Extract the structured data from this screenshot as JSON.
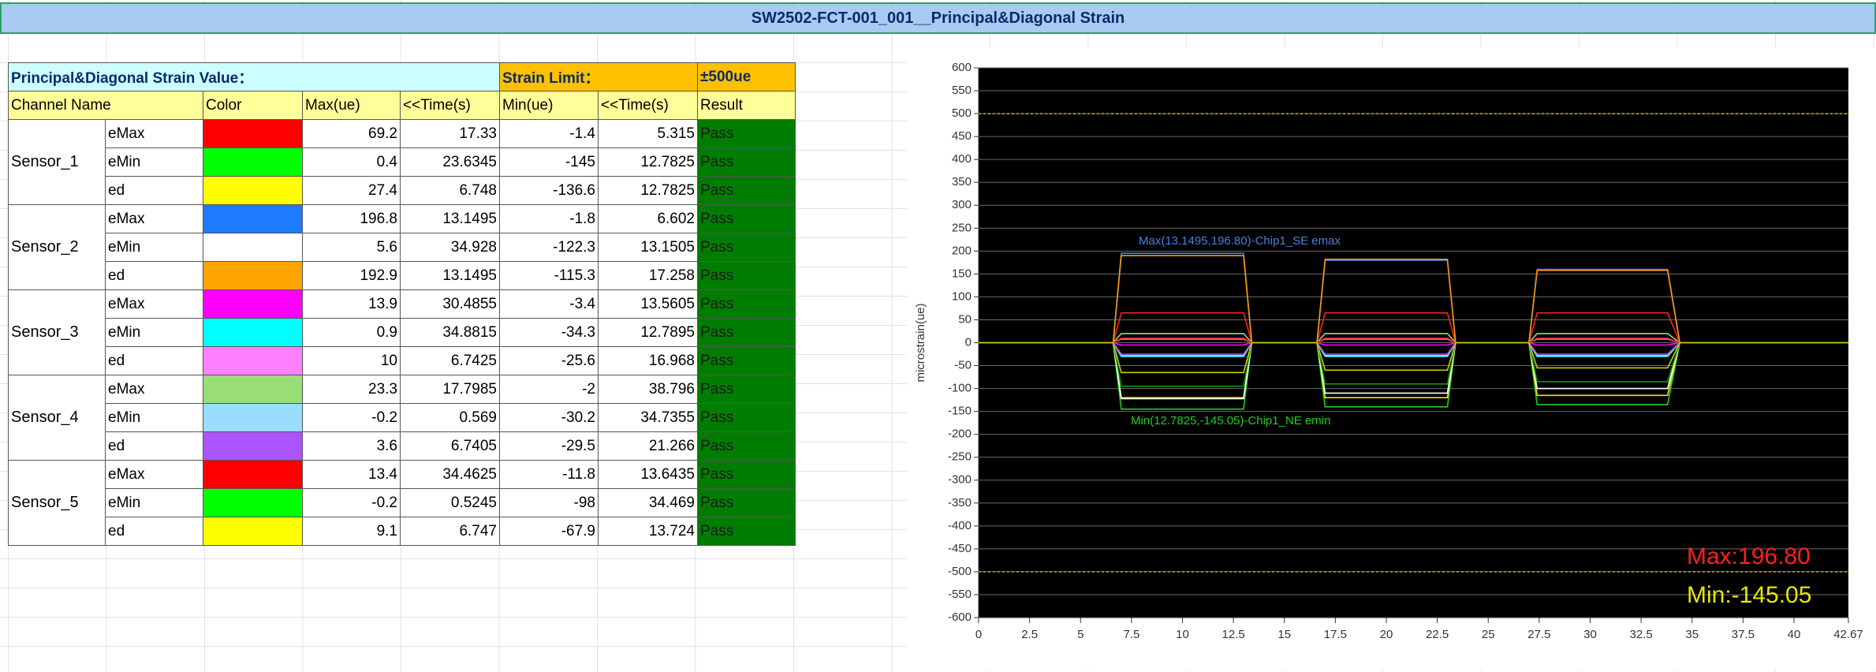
{
  "title": "SW2502-FCT-001_001__Principal&Diagonal Strain",
  "table": {
    "header": "Principal&Diagonal Strain Value：",
    "limit_label": "Strain Limit：",
    "limit_value": "±500ue",
    "columns": [
      "Channel Name",
      "Color",
      "Max(ue)",
      "<<Time(s)",
      "Min(ue)",
      "<<Time(s)",
      "Result"
    ],
    "sensors": [
      {
        "name": "Sensor_1",
        "channels": [
          {
            "name": "eMax",
            "color": "#ff0000",
            "max": 69.2,
            "max_time": 17.33,
            "min": -1.4,
            "min_time": 5.315,
            "result": "Pass"
          },
          {
            "name": "eMin",
            "color": "#00ff00",
            "max": 0.4,
            "max_time": 23.6345,
            "min": -145,
            "min_time": 12.7825,
            "result": "Pass"
          },
          {
            "name": "ed",
            "color": "#ffff00",
            "max": 27.4,
            "max_time": 6.748,
            "min": -136.6,
            "min_time": 12.7825,
            "result": "Pass"
          }
        ]
      },
      {
        "name": "Sensor_2",
        "channels": [
          {
            "name": "eMax",
            "color": "#1f7bff",
            "max": 196.8,
            "max_time": 13.1495,
            "min": -1.8,
            "min_time": 6.602,
            "result": "Pass"
          },
          {
            "name": "eMin",
            "color": "#ffffff",
            "max": 5.6,
            "max_time": 34.928,
            "min": -122.3,
            "min_time": 13.1505,
            "result": "Pass"
          },
          {
            "name": "ed",
            "color": "#ffa500",
            "max": 192.9,
            "max_time": 13.1495,
            "min": -115.3,
            "min_time": 17.258,
            "result": "Pass"
          }
        ]
      },
      {
        "name": "Sensor_3",
        "channels": [
          {
            "name": "eMax",
            "color": "#ff00ff",
            "max": 13.9,
            "max_time": 30.4855,
            "min": -3.4,
            "min_time": 13.5605,
            "result": "Pass"
          },
          {
            "name": "eMin",
            "color": "#00ffff",
            "max": 0.9,
            "max_time": 34.8815,
            "min": -34.3,
            "min_time": 12.7895,
            "result": "Pass"
          },
          {
            "name": "ed",
            "color": "#ff80ff",
            "max": 10,
            "max_time": 6.7425,
            "min": -25.6,
            "min_time": 16.968,
            "result": "Pass"
          }
        ]
      },
      {
        "name": "Sensor_4",
        "channels": [
          {
            "name": "eMax",
            "color": "#99dd77",
            "max": 23.3,
            "max_time": 17.7985,
            "min": -2,
            "min_time": 38.796,
            "result": "Pass"
          },
          {
            "name": "eMin",
            "color": "#99ddff",
            "max": -0.2,
            "max_time": 0.569,
            "min": -30.2,
            "min_time": 34.7355,
            "result": "Pass"
          },
          {
            "name": "ed",
            "color": "#aa55ff",
            "max": 3.6,
            "max_time": 6.7405,
            "min": -29.5,
            "min_time": 21.266,
            "result": "Pass"
          }
        ]
      },
      {
        "name": "Sensor_5",
        "channels": [
          {
            "name": "eMax",
            "color": "#ff0000",
            "max": 13.4,
            "max_time": 34.4625,
            "min": -11.8,
            "min_time": 13.6435,
            "result": "Pass"
          },
          {
            "name": "eMin",
            "color": "#00ff00",
            "max": -0.2,
            "max_time": 0.5245,
            "min": -98,
            "min_time": 34.469,
            "result": "Pass"
          },
          {
            "name": "ed",
            "color": "#ffff00",
            "max": 9.1,
            "max_time": 6.747,
            "min": -67.9,
            "min_time": 13.724,
            "result": "Pass"
          }
        ]
      }
    ]
  },
  "chart_data": {
    "type": "line",
    "ylabel": "microstrain(ue)",
    "background": "#000000",
    "grid": true,
    "xlim": [
      0,
      42.67
    ],
    "ylim": [
      -600,
      600
    ],
    "xticks": [
      0,
      2.5,
      5,
      7.5,
      10,
      12.5,
      15,
      17.5,
      20,
      22.5,
      25,
      27.5,
      30,
      32.5,
      35,
      37.5,
      40,
      42.67
    ],
    "yticks": [
      -600,
      -550,
      -500,
      -450,
      -400,
      -350,
      -300,
      -250,
      -200,
      -150,
      -100,
      -50,
      0,
      50,
      100,
      150,
      200,
      250,
      300,
      350,
      400,
      450,
      500,
      550,
      600
    ],
    "limit_lines": [
      500,
      -500
    ],
    "limit_color": "#c8b400",
    "x": [
      0,
      6.6,
      7.0,
      13.0,
      13.4,
      16.6,
      17.0,
      23.0,
      23.4,
      27.0,
      27.4,
      33.8,
      34.4,
      42.67
    ],
    "series": [
      {
        "color": "#ff2020",
        "values": [
          0,
          0,
          65,
          65,
          0,
          0,
          65,
          65,
          0,
          0,
          65,
          65,
          0,
          0
        ]
      },
      {
        "color": "#22cc22",
        "values": [
          0,
          0,
          -145,
          -145,
          0,
          0,
          -140,
          -140,
          0,
          0,
          -135,
          -135,
          0,
          0
        ]
      },
      {
        "color": "#e6e600",
        "values": [
          0,
          0,
          -120,
          -120,
          0,
          0,
          -120,
          -120,
          0,
          0,
          -115,
          -115,
          0,
          0
        ]
      },
      {
        "color": "#3a80ff",
        "values": [
          0,
          0,
          195,
          195,
          0,
          0,
          180,
          180,
          0,
          0,
          160,
          160,
          0,
          0
        ]
      },
      {
        "color": "#ffffff",
        "values": [
          0,
          0,
          -122,
          -122,
          0,
          0,
          -110,
          -110,
          0,
          0,
          -100,
          -100,
          0,
          0
        ]
      },
      {
        "color": "#ff9a00",
        "values": [
          0,
          0,
          190,
          190,
          0,
          0,
          182,
          182,
          0,
          0,
          158,
          158,
          0,
          0
        ]
      },
      {
        "color": "#ff00ff",
        "values": [
          0,
          0,
          -5,
          -5,
          0,
          0,
          -5,
          -5,
          0,
          0,
          -5,
          -5,
          0,
          0
        ]
      },
      {
        "color": "#00ffff",
        "values": [
          0,
          0,
          -30,
          -30,
          0,
          0,
          -30,
          -30,
          0,
          0,
          -30,
          -30,
          0,
          0
        ]
      },
      {
        "color": "#ff80ff",
        "values": [
          0,
          0,
          8,
          8,
          0,
          0,
          8,
          8,
          0,
          0,
          8,
          8,
          0,
          0
        ]
      },
      {
        "color": "#99dd77",
        "values": [
          0,
          0,
          20,
          20,
          0,
          0,
          20,
          20,
          0,
          0,
          20,
          20,
          0,
          0
        ]
      },
      {
        "color": "#99ddff",
        "values": [
          0,
          0,
          -28,
          -28,
          0,
          0,
          -28,
          -28,
          0,
          0,
          -28,
          -28,
          0,
          0
        ]
      },
      {
        "color": "#aa55ff",
        "values": [
          0,
          0,
          -25,
          -25,
          0,
          0,
          -25,
          -25,
          0,
          0,
          -25,
          -25,
          0,
          0
        ]
      },
      {
        "color": "#dd1010",
        "values": [
          0,
          0,
          10,
          10,
          0,
          0,
          10,
          10,
          0,
          0,
          10,
          10,
          0,
          0
        ]
      },
      {
        "color": "#119911",
        "values": [
          0,
          0,
          -95,
          -95,
          0,
          0,
          -90,
          -90,
          0,
          0,
          -85,
          -85,
          0,
          0
        ]
      },
      {
        "color": "#cccc00",
        "values": [
          0,
          0,
          -65,
          -65,
          0,
          0,
          -60,
          -60,
          0,
          0,
          -55,
          -55,
          0,
          0
        ]
      }
    ],
    "annotations": [
      {
        "text": "Max(13.1495,196.80)-Chip1_SE emax",
        "color": "#4a7fe0"
      },
      {
        "text": "Min(12.7825,-145.05)-Chip1_NE emin",
        "color": "#22cc22"
      },
      {
        "text": "Max:196.80",
        "color": "#ff2020"
      },
      {
        "text": "Min:-145.05",
        "color": "#e6e600"
      }
    ]
  }
}
